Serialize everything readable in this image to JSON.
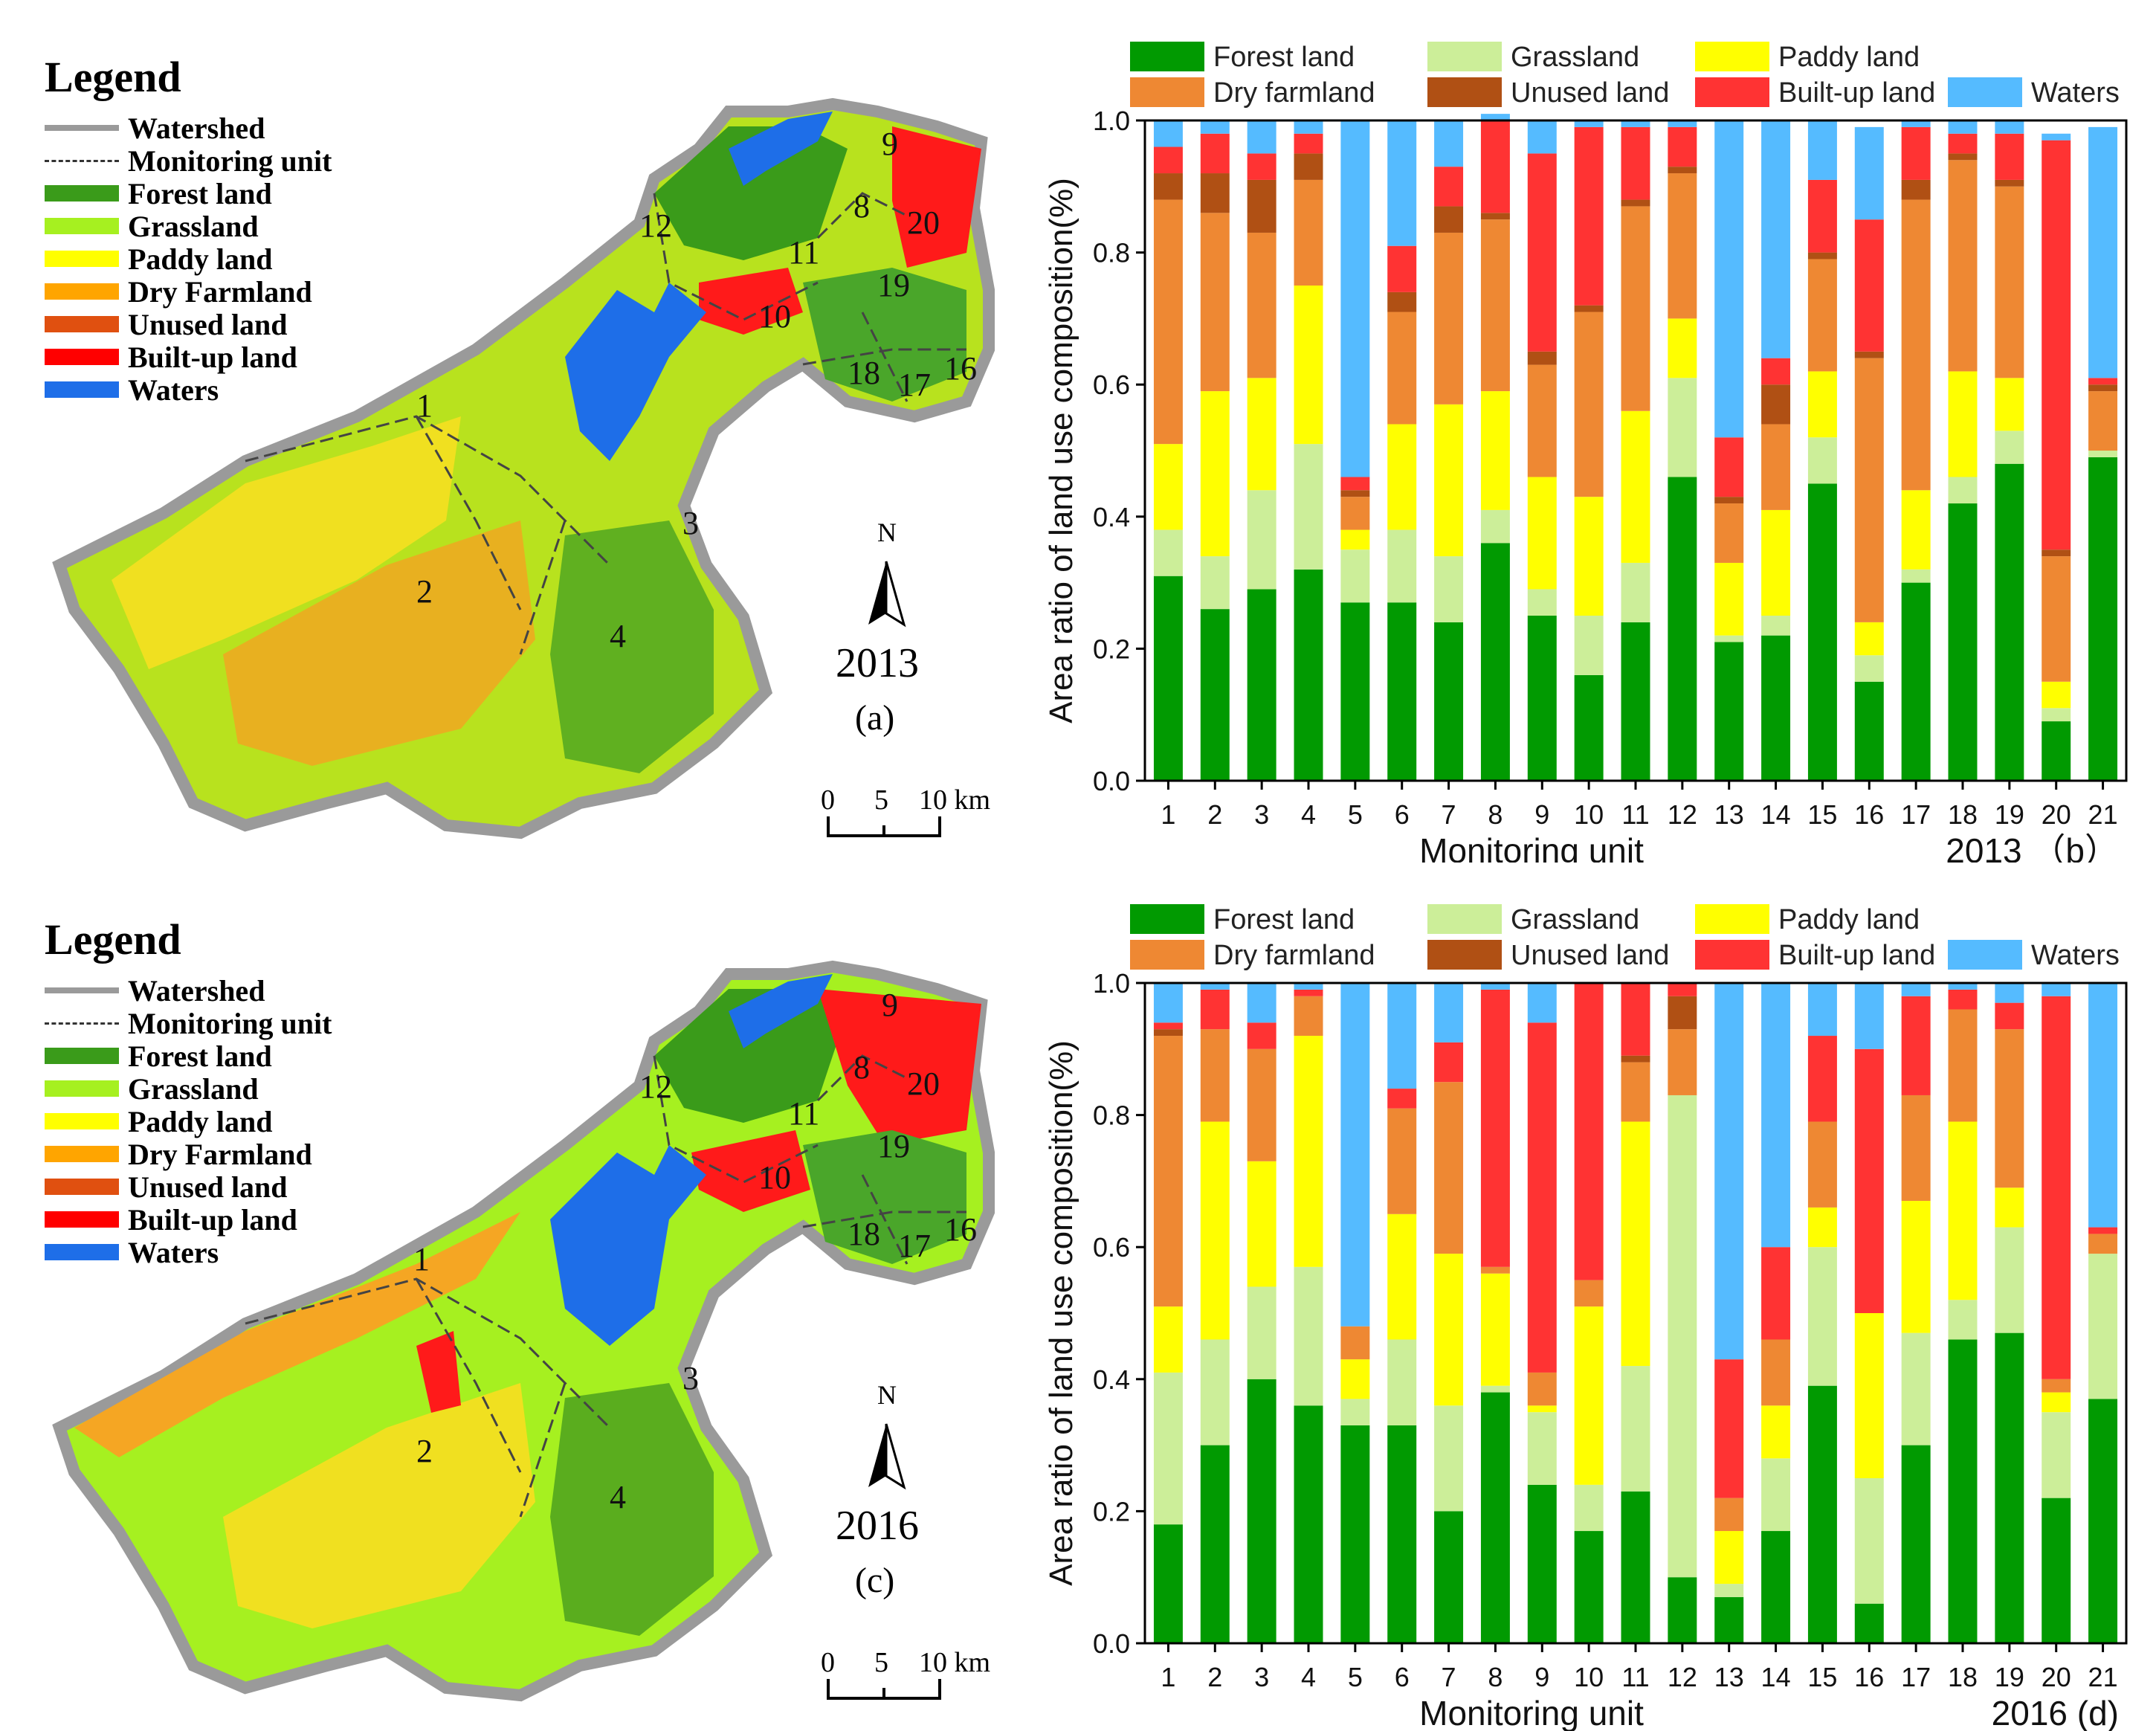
{
  "legend_map": {
    "title": "Legend",
    "items": [
      {
        "label": "Watershed",
        "type": "watershed"
      },
      {
        "label": "Monitoring unit",
        "type": "unit"
      },
      {
        "label": "Forest land",
        "color": "#3a9b1a"
      },
      {
        "label": "Grassland",
        "color": "#a6f020"
      },
      {
        "label": "Paddy land",
        "color": "#ffff00"
      },
      {
        "label": "Dry Farmland",
        "color": "#ffa500"
      },
      {
        "label": "Unused land",
        "color": "#e05010"
      },
      {
        "label": "Built-up land",
        "color": "#ff0000"
      },
      {
        "label": "Waters",
        "color": "#1e6ee8"
      }
    ]
  },
  "map_a": {
    "year": "2013",
    "sub": "(a)",
    "north": "N",
    "scale": {
      "t0": "0",
      "t5": "5",
      "t10": "10 km"
    },
    "unit_labels": [
      "1",
      "2",
      "3",
      "4",
      "8",
      "9",
      "10",
      "11",
      "12",
      "16",
      "17",
      "18",
      "19",
      "20"
    ]
  },
  "map_c": {
    "year": "2016",
    "sub": "(c)",
    "north": "N",
    "scale": {
      "t0": "0",
      "t5": "5",
      "t10": "10 km"
    },
    "unit_labels": [
      "1",
      "2",
      "3",
      "4",
      "8",
      "9",
      "10",
      "11",
      "12",
      "16",
      "17",
      "18",
      "19",
      "20"
    ]
  },
  "chart_data": [
    {
      "type": "bar",
      "stacked": true,
      "title": "2013 （b）",
      "xlabel": "Monitoring unit",
      "ylabel": "Area ratio of land use composition(%)",
      "ylim": [
        0,
        1.0
      ],
      "yticks": [
        "0.0",
        "0.2",
        "0.4",
        "0.6",
        "0.8",
        "1.0"
      ],
      "categories": [
        "1",
        "2",
        "3",
        "4",
        "5",
        "6",
        "7",
        "8",
        "9",
        "10",
        "11",
        "12",
        "13",
        "14",
        "15",
        "16",
        "17",
        "18",
        "19",
        "20",
        "21"
      ],
      "series": [
        {
          "name": "Forest land",
          "color": "#019a01",
          "values": [
            0.31,
            0.26,
            0.29,
            0.32,
            0.27,
            0.27,
            0.24,
            0.36,
            0.25,
            0.16,
            0.24,
            0.46,
            0.21,
            0.22,
            0.45,
            0.15,
            0.3,
            0.42,
            0.48,
            0.09,
            0.49
          ]
        },
        {
          "name": "Grassland",
          "color": "#ccee99",
          "values": [
            0.07,
            0.08,
            0.15,
            0.19,
            0.08,
            0.11,
            0.1,
            0.05,
            0.04,
            0.09,
            0.09,
            0.15,
            0.01,
            0.03,
            0.07,
            0.04,
            0.02,
            0.04,
            0.05,
            0.02,
            0.01
          ]
        },
        {
          "name": "Paddy land",
          "color": "#ffff00",
          "values": [
            0.13,
            0.25,
            0.17,
            0.24,
            0.03,
            0.16,
            0.23,
            0.18,
            0.17,
            0.18,
            0.23,
            0.09,
            0.11,
            0.16,
            0.1,
            0.05,
            0.12,
            0.16,
            0.08,
            0.04,
            0.0
          ]
        },
        {
          "name": "Dry farmland",
          "color": "#ee8833",
          "values": [
            0.37,
            0.27,
            0.22,
            0.16,
            0.05,
            0.17,
            0.26,
            0.26,
            0.17,
            0.28,
            0.31,
            0.22,
            0.09,
            0.13,
            0.17,
            0.4,
            0.44,
            0.32,
            0.29,
            0.19,
            0.09
          ]
        },
        {
          "name": "Unused land",
          "color": "#b05014",
          "values": [
            0.04,
            0.06,
            0.08,
            0.04,
            0.01,
            0.03,
            0.04,
            0.01,
            0.02,
            0.01,
            0.01,
            0.01,
            0.01,
            0.06,
            0.01,
            0.01,
            0.03,
            0.01,
            0.01,
            0.01,
            0.01
          ]
        },
        {
          "name": "Built-up land",
          "color": "#ff3333",
          "values": [
            0.04,
            0.06,
            0.04,
            0.03,
            0.02,
            0.07,
            0.06,
            0.14,
            0.3,
            0.27,
            0.11,
            0.06,
            0.09,
            0.04,
            0.11,
            0.2,
            0.08,
            0.03,
            0.07,
            0.62,
            0.01
          ]
        },
        {
          "name": "Waters",
          "color": "#55bbff",
          "values": [
            0.04,
            0.02,
            0.05,
            0.02,
            0.54,
            0.19,
            0.07,
            0.01,
            0.05,
            0.01,
            0.01,
            0.01,
            0.48,
            0.36,
            0.09,
            0.14,
            0.01,
            0.02,
            0.02,
            0.01,
            0.38
          ]
        }
      ]
    },
    {
      "type": "bar",
      "stacked": true,
      "title": "2016 (d)",
      "xlabel": "Monitoring unit",
      "ylabel": "Area ratio of land use composition(%)",
      "ylim": [
        0,
        1.0
      ],
      "yticks": [
        "0.0",
        "0.2",
        "0.4",
        "0.6",
        "0.8",
        "1.0"
      ],
      "categories": [
        "1",
        "2",
        "3",
        "4",
        "5",
        "6",
        "7",
        "8",
        "9",
        "10",
        "11",
        "12",
        "13",
        "14",
        "15",
        "16",
        "17",
        "18",
        "19",
        "20",
        "21"
      ],
      "series": [
        {
          "name": "Forest land",
          "color": "#019a01",
          "values": [
            0.18,
            0.3,
            0.4,
            0.36,
            0.33,
            0.33,
            0.2,
            0.38,
            0.24,
            0.17,
            0.23,
            0.1,
            0.07,
            0.17,
            0.39,
            0.06,
            0.3,
            0.46,
            0.47,
            0.22,
            0.37
          ]
        },
        {
          "name": "Grassland",
          "color": "#ccee99",
          "values": [
            0.23,
            0.16,
            0.14,
            0.21,
            0.04,
            0.13,
            0.16,
            0.01,
            0.11,
            0.07,
            0.19,
            0.73,
            0.02,
            0.11,
            0.21,
            0.19,
            0.17,
            0.06,
            0.16,
            0.13,
            0.22
          ]
        },
        {
          "name": "Paddy land",
          "color": "#ffff00",
          "values": [
            0.1,
            0.33,
            0.19,
            0.35,
            0.06,
            0.19,
            0.23,
            0.17,
            0.01,
            0.27,
            0.37,
            0.0,
            0.08,
            0.08,
            0.06,
            0.25,
            0.2,
            0.27,
            0.06,
            0.03,
            0.0
          ]
        },
        {
          "name": "Dry farmland",
          "color": "#ee8833",
          "values": [
            0.41,
            0.14,
            0.17,
            0.06,
            0.05,
            0.16,
            0.26,
            0.01,
            0.05,
            0.04,
            0.09,
            0.1,
            0.05,
            0.1,
            0.13,
            0.0,
            0.16,
            0.17,
            0.24,
            0.02,
            0.03
          ]
        },
        {
          "name": "Unused land",
          "color": "#b05014",
          "values": [
            0.01,
            0.0,
            0.0,
            0.0,
            0.0,
            0.0,
            0.0,
            0.0,
            0.0,
            0.0,
            0.01,
            0.05,
            0.0,
            0.0,
            0.0,
            0.0,
            0.0,
            0.0,
            0.0,
            0.0,
            0.0
          ]
        },
        {
          "name": "Built-up land",
          "color": "#ff3333",
          "values": [
            0.01,
            0.06,
            0.04,
            0.01,
            0.0,
            0.03,
            0.06,
            0.42,
            0.53,
            0.45,
            0.11,
            0.02,
            0.21,
            0.14,
            0.13,
            0.4,
            0.15,
            0.03,
            0.04,
            0.58,
            0.01
          ]
        },
        {
          "name": "Waters",
          "color": "#55bbff",
          "values": [
            0.06,
            0.01,
            0.06,
            0.01,
            0.52,
            0.16,
            0.09,
            0.01,
            0.06,
            0.0,
            0.0,
            0.0,
            0.57,
            0.4,
            0.08,
            0.1,
            0.02,
            0.01,
            0.03,
            0.02,
            0.37
          ]
        }
      ]
    }
  ]
}
